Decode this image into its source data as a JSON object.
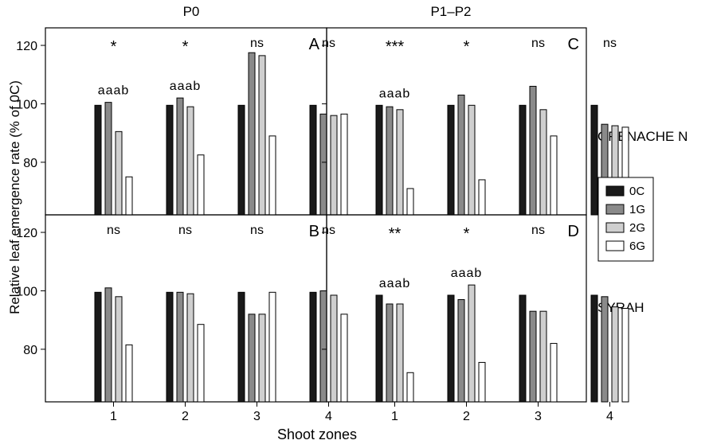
{
  "xlabel": "Shoot zones",
  "ylabel": "Relative leaf emergence rate (% of 0C)",
  "column_titles": [
    "P0",
    "P1–P2"
  ],
  "row_labels": [
    "GRENACHE N",
    "SYRAH"
  ],
  "legend": {
    "entries": [
      {
        "name": "0C",
        "color": "#1a1a1a"
      },
      {
        "name": "1G",
        "color": "#8a8a8a"
      },
      {
        "name": "2G",
        "color": "#cfcfcf"
      },
      {
        "name": "6G",
        "color": "#ffffff"
      }
    ]
  },
  "chart_data": [
    {
      "type": "bar",
      "panel": "A",
      "column": "P0",
      "row": "GRENACHE N",
      "categories": [
        "1",
        "2",
        "3",
        "4"
      ],
      "ylim": [
        62,
        126
      ],
      "yticks": [
        80,
        100,
        120
      ],
      "series": [
        {
          "name": "0C",
          "values": [
            99.5,
            99.5,
            99.5,
            99.5
          ]
        },
        {
          "name": "1G",
          "values": [
            100.5,
            102,
            117.5,
            96.5
          ]
        },
        {
          "name": "2G",
          "values": [
            90.5,
            99,
            116.5,
            96
          ]
        },
        {
          "name": "6G",
          "values": [
            75,
            82.5,
            89,
            96.5
          ]
        }
      ],
      "significance": [
        "*",
        "*",
        "ns",
        "ns"
      ],
      "letters": [
        "aaab",
        "aaab",
        "",
        ""
      ]
    },
    {
      "type": "bar",
      "panel": "C",
      "column": "P1–P2",
      "row": "GRENACHE N",
      "categories": [
        "1",
        "2",
        "3",
        "4"
      ],
      "ylim": [
        62,
        126
      ],
      "yticks": [
        80,
        100,
        120
      ],
      "series": [
        {
          "name": "0C",
          "values": [
            99.5,
            99.5,
            99.5,
            99.5
          ]
        },
        {
          "name": "1G",
          "values": [
            99,
            103,
            106,
            93
          ]
        },
        {
          "name": "2G",
          "values": [
            98,
            99.5,
            98,
            92.5
          ]
        },
        {
          "name": "6G",
          "values": [
            71,
            74,
            89,
            92
          ]
        }
      ],
      "significance": [
        "***",
        "*",
        "ns",
        "ns"
      ],
      "letters": [
        "aaab",
        "",
        "",
        ""
      ]
    },
    {
      "type": "bar",
      "panel": "B",
      "column": "P0",
      "row": "SYRAH",
      "categories": [
        "1",
        "2",
        "3",
        "4"
      ],
      "ylim": [
        62,
        126
      ],
      "yticks": [
        80,
        100,
        120
      ],
      "series": [
        {
          "name": "0C",
          "values": [
            99.5,
            99.5,
            99.5,
            99.5
          ]
        },
        {
          "name": "1G",
          "values": [
            101,
            99.5,
            92,
            100
          ]
        },
        {
          "name": "2G",
          "values": [
            98,
            99,
            92,
            98.5
          ]
        },
        {
          "name": "6G",
          "values": [
            81.5,
            88.5,
            99.5,
            92
          ]
        }
      ],
      "significance": [
        "ns",
        "ns",
        "ns",
        "ns"
      ],
      "letters": [
        "",
        "",
        "",
        ""
      ]
    },
    {
      "type": "bar",
      "panel": "D",
      "column": "P1–P2",
      "row": "SYRAH",
      "categories": [
        "1",
        "2",
        "3",
        "4"
      ],
      "ylim": [
        62,
        126
      ],
      "yticks": [
        80,
        100,
        120
      ],
      "series": [
        {
          "name": "0C",
          "values": [
            98.5,
            98.5,
            98.5,
            98.5
          ]
        },
        {
          "name": "1G",
          "values": [
            95.5,
            97,
            93,
            98
          ]
        },
        {
          "name": "2G",
          "values": [
            95.5,
            102,
            93,
            94.5
          ]
        },
        {
          "name": "6G",
          "values": [
            72,
            75.5,
            82,
            94
          ]
        }
      ],
      "significance": [
        "**",
        "*",
        "ns",
        "ns"
      ],
      "letters": [
        "aaab",
        "aaab",
        "",
        ""
      ]
    }
  ]
}
